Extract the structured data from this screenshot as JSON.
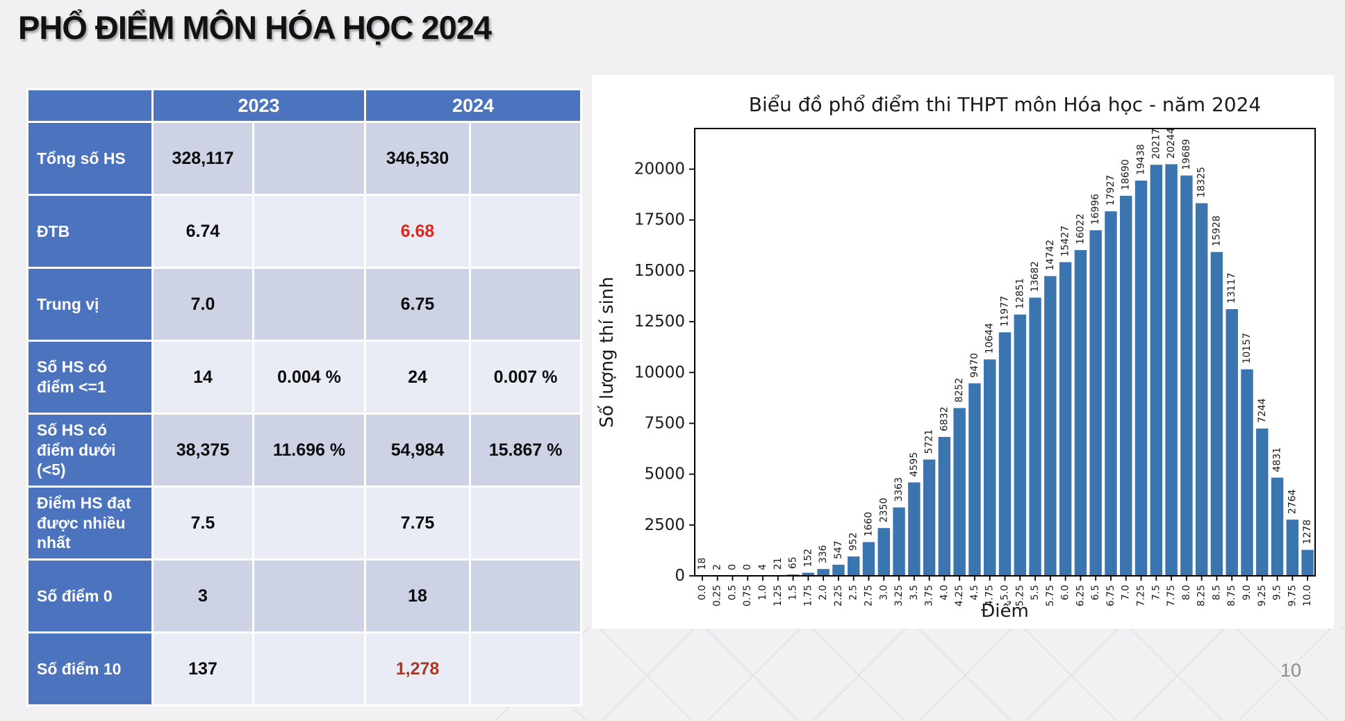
{
  "slide": {
    "title": "PHỔ ĐIỂM MÔN HÓA HỌC 2024",
    "page_number": "10"
  },
  "table": {
    "header": {
      "col_2023": "2023",
      "col_2024": "2024"
    },
    "rows": [
      {
        "label": "Tổng số HS",
        "v2023": "328,117",
        "p2023": "",
        "v2024": "346,530",
        "p2024": ""
      },
      {
        "label": "ĐTB",
        "v2023": "6.74",
        "p2023": "",
        "v2024": "6.68",
        "p2024": "",
        "v2024_accent": "red"
      },
      {
        "label": "Trung vị",
        "v2023": "7.0",
        "p2023": "",
        "v2024": "6.75",
        "p2024": ""
      },
      {
        "label": "Số HS có điểm <=1",
        "v2023": "14",
        "p2023": "0.004 %",
        "v2024": "24",
        "p2024": "0.007 %"
      },
      {
        "label": "Số HS có điểm dưới (<5)",
        "v2023": "38,375",
        "p2023": "11.696 %",
        "v2024": "54,984",
        "p2024": "15.867 %"
      },
      {
        "label": "Điểm HS đạt được nhiều nhất",
        "v2023": "7.5",
        "p2023": "",
        "v2024": "7.75",
        "p2024": ""
      },
      {
        "label": "Số điểm 0",
        "v2023": "3",
        "p2023": "",
        "v2024": "18",
        "p2024": ""
      },
      {
        "label": "Số điểm 10",
        "v2023": "137",
        "p2023": "",
        "v2024": "1,278",
        "p2024": "",
        "v2024_accent": "darkred"
      }
    ],
    "colors": {
      "header_blue": "#4c73bd",
      "band_dark": "#cdd3e5",
      "band_light": "#e9ecf5",
      "red": "#e3241c",
      "darkred": "#a63a28"
    }
  },
  "chart_data": {
    "type": "bar",
    "title": "Biểu đồ phổ điểm thi THPT môn Hóa học - năm 2024",
    "xlabel": "Điểm",
    "ylabel": "Số lượng thí sinh",
    "legend": "none",
    "grid": false,
    "bar_color": "#3b75af",
    "text_color": "#1a1a1a",
    "ylim": [
      0,
      22000
    ],
    "yticks": [
      0,
      2500,
      5000,
      7500,
      10000,
      12500,
      15000,
      17500,
      20000
    ],
    "categories": [
      "0.0",
      "0.25",
      "0.5",
      "0.75",
      "1.0",
      "1.25",
      "1.5",
      "1.75",
      "2.0",
      "2.25",
      "2.5",
      "2.75",
      "3.0",
      "3.25",
      "3.5",
      "3.75",
      "4.0",
      "4.25",
      "4.5",
      "4.75",
      "5.0",
      "5.25",
      "5.5",
      "5.75",
      "6.0",
      "6.25",
      "6.5",
      "6.75",
      "7.0",
      "7.25",
      "7.5",
      "7.75",
      "8.0",
      "8.25",
      "8.5",
      "8.75",
      "9.0",
      "9.25",
      "9.5",
      "9.75",
      "10.0"
    ],
    "values": [
      18,
      2,
      0,
      0,
      4,
      21,
      65,
      152,
      336,
      547,
      952,
      1660,
      2350,
      3363,
      4595,
      5721,
      6832,
      8252,
      9470,
      10644,
      11977,
      12851,
      13682,
      14742,
      15427,
      16022,
      16996,
      17927,
      18690,
      19438,
      20217,
      20244,
      19689,
      18325,
      15928,
      13117,
      10157,
      7244,
      4831,
      2764,
      1278
    ]
  }
}
